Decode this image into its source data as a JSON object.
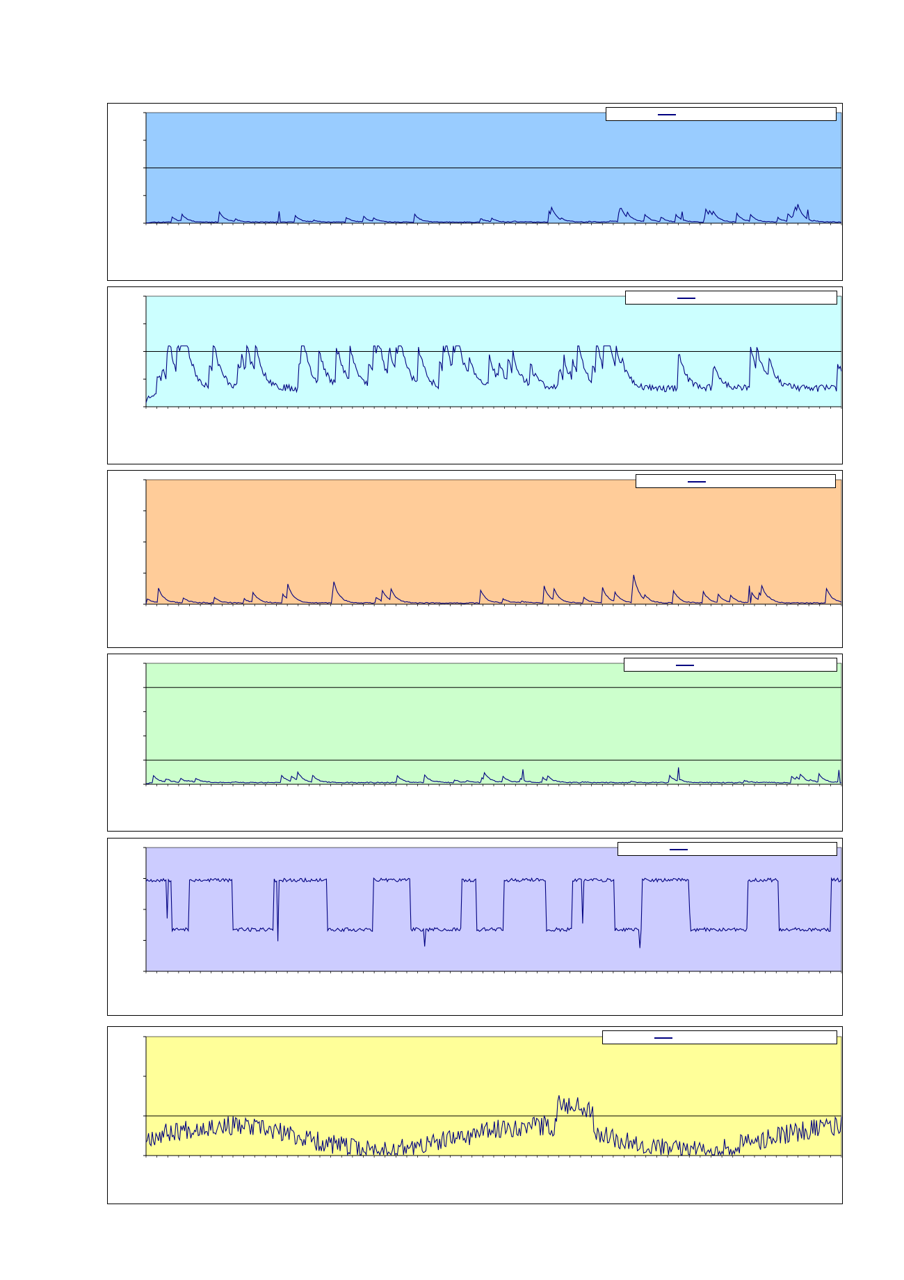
{
  "page": {
    "background": "#ffffff"
  },
  "chart_data": [
    {
      "type": "line",
      "plot_bg": "#99ccff",
      "line_color": "#000080",
      "ylim": [
        0,
        4
      ],
      "hlines": [
        2
      ],
      "peak": 0.55,
      "seed": 11,
      "style": "spiky",
      "legend": ""
    },
    {
      "type": "line",
      "plot_bg": "#ccffff",
      "line_color": "#000080",
      "ylim": [
        0,
        4
      ],
      "hlines": [
        2
      ],
      "peak": 2.2,
      "seed": 23,
      "style": "busy",
      "legend": ""
    },
    {
      "type": "line",
      "plot_bg": "#ffcc99",
      "line_color": "#000080",
      "ylim": [
        0,
        4
      ],
      "hlines": [],
      "peak": 0.8,
      "seed": 37,
      "style": "spiky",
      "legend": ""
    },
    {
      "type": "line",
      "plot_bg": "#ccffcc",
      "line_color": "#000080",
      "ylim": [
        0,
        5
      ],
      "hlines": [
        1,
        4
      ],
      "peak": 1.05,
      "seed": 41,
      "style": "low",
      "legend": ""
    },
    {
      "type": "line",
      "plot_bg": "#ccccff",
      "line_color": "#000080",
      "ylim": [
        0,
        4
      ],
      "hlines": [],
      "peak": 3.2,
      "seed": 53,
      "style": "square",
      "legend": ""
    },
    {
      "type": "line",
      "plot_bg": "#ffff99",
      "line_color": "#000080",
      "ylim": [
        0,
        3
      ],
      "hlines": [
        1
      ],
      "peak": 1.8,
      "seed": 67,
      "style": "noisy",
      "legend": ""
    }
  ]
}
